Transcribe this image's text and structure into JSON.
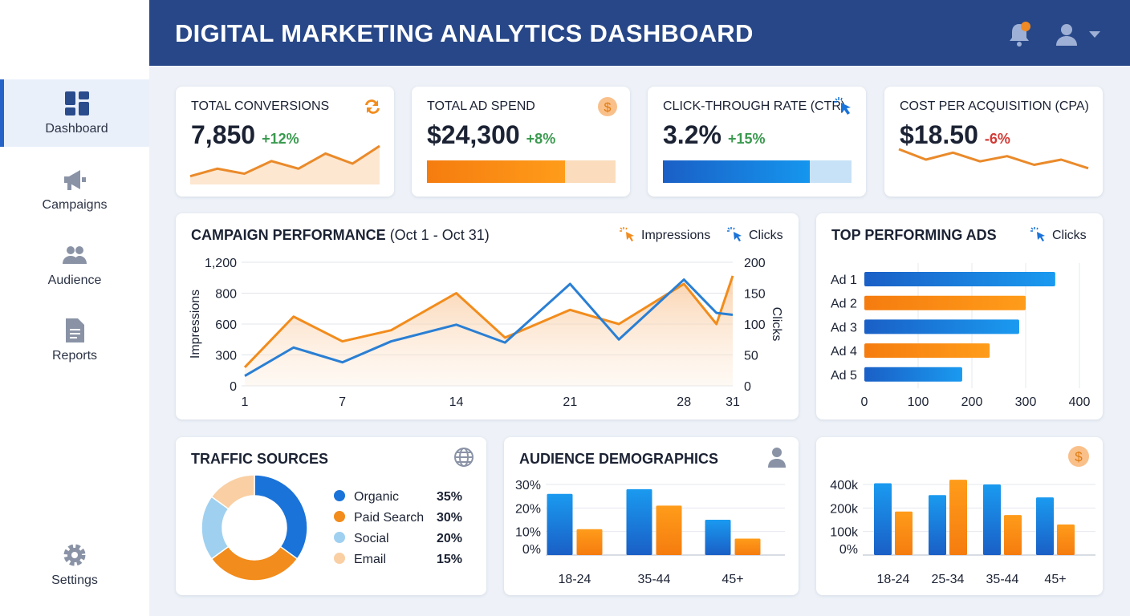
{
  "header": {
    "title": "DIGITAL MARKETING ANALYTICS DASHBOARD",
    "icons": [
      "bell-icon",
      "user-icon",
      "chevron-down-icon"
    ],
    "notification_color": "#f08a24"
  },
  "sidebar": {
    "items": [
      {
        "label": "Dashboard",
        "icon": "dashboard-icon",
        "active": true
      },
      {
        "label": "Campaigns",
        "icon": "megaphone-icon"
      },
      {
        "label": "Audience",
        "icon": "users-icon"
      },
      {
        "label": "Reports",
        "icon": "document-icon"
      }
    ],
    "settings": {
      "label": "Settings",
      "icon": "gear-icon"
    }
  },
  "colors": {
    "blue": "#1a73d9",
    "orange": "#f28c1c",
    "light_blue": "#9fd0f0",
    "peach": "#f9cfa3",
    "up": "#3a9a4f",
    "down": "#d33a35"
  },
  "kpis": [
    {
      "title": "TOTAL CONVERSIONS",
      "value": "7,850",
      "change": "+12%",
      "trend": "up",
      "icon": "refresh-icon",
      "spark": [
        2,
        5,
        3,
        8,
        5,
        11,
        7,
        14
      ]
    },
    {
      "title": "TOTAL AD SPEND",
      "value": "$24,300",
      "change": "+8%",
      "trend": "up",
      "icon": "dollar-icon",
      "progress": 0.73
    },
    {
      "title": "CLICK-THROUGH RATE (CTR)",
      "value": "3.2%",
      "change": "+15%",
      "trend": "up",
      "icon": "cursor-click-icon",
      "progress": 0.78
    },
    {
      "title": "COST PER ACQUISITION (CPA)",
      "value": "$18.50",
      "change": "-6%",
      "trend": "down",
      "icon": "",
      "spark": [
        12,
        6,
        10,
        5,
        8,
        3,
        6,
        1
      ]
    }
  ],
  "campaign": {
    "title": "CAMPAIGN PERFORMANCE",
    "subtitle": "(Oct 1 - Oct 31)",
    "legend": [
      "Impressions",
      "Clicks"
    ]
  },
  "top_ads": {
    "title": "TOP PERFORMING ADS",
    "legend": "Clicks"
  },
  "traffic": {
    "title": "TRAFFIC SOURCES",
    "icon": "globe-icon"
  },
  "demographics": {
    "title": "AUDIENCE DEMOGRAPHICS",
    "icon": "user-icon"
  },
  "spend_chart": {
    "title": "",
    "icon": "dollar-icon"
  },
  "chart_data": [
    {
      "type": "line",
      "x": [
        1,
        4,
        7,
        10,
        14,
        17,
        21,
        24,
        28,
        30,
        31
      ],
      "xticks": [
        "1",
        "7",
        "14",
        "21",
        "28",
        "31"
      ],
      "y_left_label": "Impressions",
      "y_left_ticks": [
        "0",
        "300",
        "600",
        "800",
        "1,200"
      ],
      "y_right_label": "Clicks",
      "y_right_ticks": [
        "0",
        "50",
        "100",
        "150",
        "200"
      ],
      "ylim_right": [
        0,
        200
      ],
      "series": [
        {
          "name": "Impressions",
          "axis": "left",
          "area": true,
          "values": [
            180,
            648,
            432,
            540,
            800,
            468,
            692,
            600,
            920,
            600,
            1024
          ]
        },
        {
          "name": "Clicks",
          "axis": "right",
          "values": [
            16,
            62,
            38,
            72,
            99,
            70,
            165,
            75,
            172,
            118,
            115
          ]
        }
      ],
      "grid": true
    },
    {
      "type": "bar",
      "orientation": "horizontal",
      "categories": [
        "Ad 1",
        "Ad 2",
        "Ad 3",
        "Ad 4",
        "Ad 5"
      ],
      "values": [
        355,
        300,
        288,
        233,
        182
      ],
      "xticks": [
        "0",
        "100",
        "200",
        "300",
        "400"
      ],
      "xlim": [
        0,
        400
      ]
    },
    {
      "type": "pie",
      "donut": true,
      "labels": [
        "Organic",
        "Paid Search",
        "Social",
        "Email"
      ],
      "values": [
        35,
        30,
        20,
        15
      ],
      "value_labels": [
        "35%",
        "30%",
        "20%",
        "15%"
      ]
    },
    {
      "type": "bar",
      "categories": [
        "18-24",
        "35-44",
        "45+"
      ],
      "yticks": [
        "0%",
        "10%",
        "20%",
        "30%"
      ],
      "ylim": [
        0,
        30
      ],
      "series": [
        {
          "values": [
            26,
            28,
            15
          ]
        },
        {
          "values": [
            11,
            21,
            7
          ]
        }
      ]
    },
    {
      "type": "bar",
      "categories": [
        "18-24",
        "25-34",
        "35-44",
        "45+"
      ],
      "yticks": [
        "0%",
        "100k",
        "200k",
        "400k"
      ],
      "series": [
        {
          "values": [
            410000,
            310000,
            400000,
            290000
          ]
        },
        {
          "values": [
            185000,
            440000,
            170000,
            130000
          ]
        }
      ]
    }
  ]
}
